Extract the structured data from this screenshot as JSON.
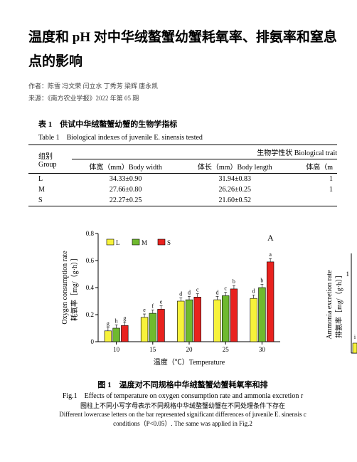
{
  "title": "温度和 pH 对中华绒螯蟹幼蟹耗氧率、排氨率和窒息点的影响",
  "authors_label": "作者：",
  "authors": "陈雪 冯文荣 闫立水 丁秀芳 梁辉 唐永凯",
  "source_label": "来源：",
  "source": "《南方农业学报》2022 年第 05 期",
  "table": {
    "caption_cn": "表 1　供试中华绒螯蟹幼蟹的生物学指标",
    "caption_en": "Table 1　Biological indexes of juvenile E. sinensis tested",
    "header_group": "组别",
    "header_group_en": "Group",
    "header_trait": "生物学性状 Biological trait",
    "col_bw": "体宽（mm）Body width",
    "col_bl": "体长（mm）Body length",
    "col_bh": "体高（m",
    "rows": [
      {
        "g": "L",
        "bw": "34.33±0.90",
        "bl": "31.94±0.83",
        "bh": "1"
      },
      {
        "g": "M",
        "bw": "27.66±0.80",
        "bl": "26.26±0.25",
        "bh": "1"
      },
      {
        "g": "S",
        "bw": "22.27±0.25",
        "bl": "21.60±0.52",
        "bh": ""
      }
    ]
  },
  "chart": {
    "panel_label": "A",
    "xlabel": "温度（℃）Temperature",
    "ylabel_cn": "耗氧率",
    "ylabel_en": "Oxygen consumption rate",
    "ylabel_unit": "［mg/（g·h）］",
    "legend": [
      "L",
      "M",
      "S"
    ],
    "colors": {
      "L": "#f7f23a",
      "M": "#6fb92e",
      "S": "#e8221e"
    },
    "ylim": [
      0,
      0.8
    ],
    "ytick_step": 0.2,
    "yticks": [
      "0",
      "0.2",
      "0.4",
      "0.6",
      "0.8"
    ],
    "categories": [
      "10",
      "15",
      "20",
      "25",
      "30"
    ],
    "series": {
      "L": [
        0.08,
        0.18,
        0.3,
        0.31,
        0.32
      ],
      "M": [
        0.1,
        0.21,
        0.31,
        0.34,
        0.4
      ],
      "S": [
        0.12,
        0.24,
        0.33,
        0.39,
        0.59
      ]
    },
    "error": 0.025,
    "sig_labels": {
      "10": [
        "g",
        "h",
        "g"
      ],
      "15": [
        "e",
        "f",
        "e"
      ],
      "20": [
        "d",
        "d",
        "c"
      ],
      "25": [
        "d",
        "c",
        "b"
      ],
      "30": [
        "d",
        "b",
        "a"
      ]
    },
    "axis_color": "#000000",
    "background": "#ffffff",
    "font_size_axis": 9
  },
  "partial_chart": {
    "ylabel_cn": "排氨率",
    "ylabel_en": "Ammonia excretion rate",
    "ylabel_unit": "［mg/（g·h）］",
    "ytick_top": "1",
    "bar_color_L": "#f7f23a",
    "sig_label": "i"
  },
  "fig_caption": {
    "cn": "图 1　温度对不同规格中华绒螯蟹幼蟹耗氧率和排",
    "en": "Fig.1　Effects of temperature on oxygen consumption rate and ammonia excretion r",
    "note_cn": "图柱上不同小写字母表示不同规格中华绒螯蟹幼蟹在不同处理条件下存在",
    "note_en1": "Different lowercase letters on the bar represented significant differences of juvenile E. sinensis c",
    "note_en2": "conditions（P<0.05）. The same was applied in Fig.2"
  }
}
